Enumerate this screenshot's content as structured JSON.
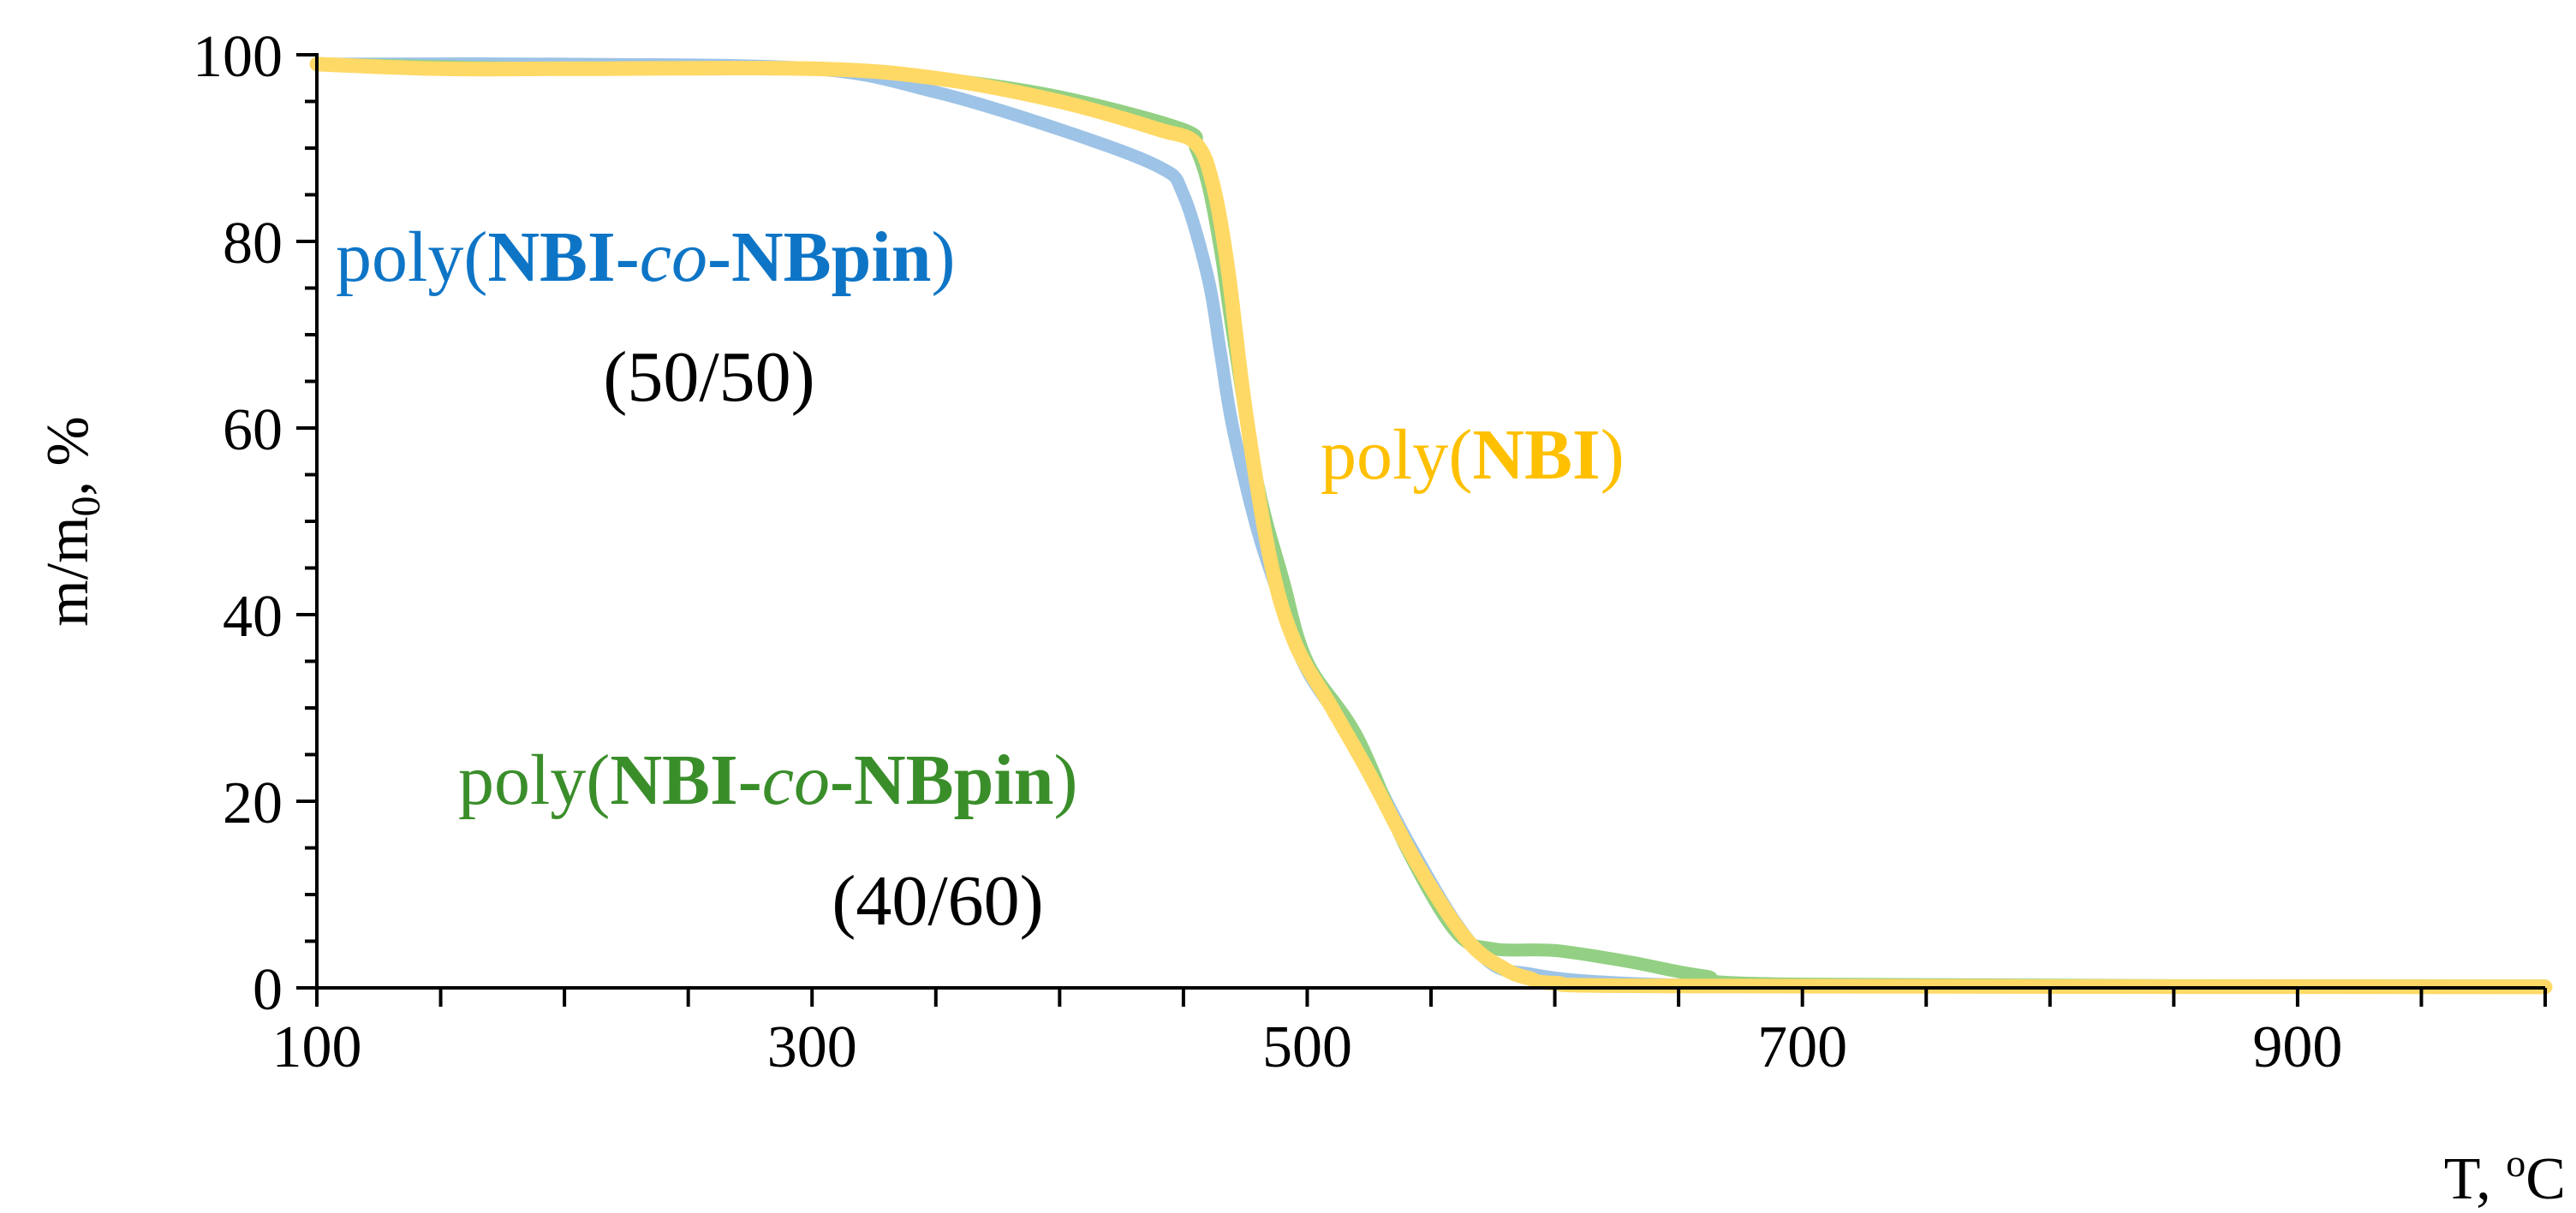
{
  "chart_data": {
    "type": "line",
    "xlabel": "T, °C",
    "xlabel_parts": {
      "pre": "T, ",
      "sup": "o",
      "post": "C"
    },
    "ylabel": "m/m0, %",
    "ylabel_parts": {
      "pre": "m/m",
      "sub": "0",
      "post": ", %"
    },
    "xlim": [
      100,
      1000
    ],
    "ylim": [
      0,
      100
    ],
    "x_ticks": [
      100,
      300,
      500,
      700,
      900
    ],
    "y_ticks": [
      0,
      20,
      40,
      60,
      80,
      100
    ],
    "x_minor_step": 50,
    "y_minor_step": 5,
    "grid": false,
    "series": [
      {
        "name": "poly(NBI-co-NBpin) (50/50)",
        "color": "#9DC3E6",
        "x": [
          100,
          200,
          300,
          350,
          400,
          440,
          450,
          460,
          465,
          470,
          480,
          490,
          500,
          520,
          540,
          560,
          575,
          590,
          610,
          650,
          700,
          1000
        ],
        "y": [
          99,
          99,
          98.5,
          96,
          92,
          88,
          85,
          76,
          68,
          60,
          49,
          41,
          34,
          26,
          16,
          7,
          2.5,
          1.5,
          0.8,
          0.3,
          0.2,
          0.1
        ]
      },
      {
        "name": "poly(NBI-co-NBpin) (40/60)",
        "color": "#93D083",
        "x": [
          100,
          200,
          300,
          350,
          400,
          450,
          455,
          460,
          465,
          470,
          480,
          490,
          500,
          520,
          540,
          560,
          575,
          600,
          630,
          660,
          700,
          1000
        ],
        "y": [
          99,
          98.5,
          98.5,
          97.5,
          95.5,
          92,
          90,
          86,
          79,
          70,
          54,
          44,
          35,
          27,
          15,
          6,
          4.2,
          4,
          2.8,
          1.3,
          0.4,
          0.2
        ]
      },
      {
        "name": "poly(NBI)",
        "color": "#FFD966",
        "x": [
          100,
          150,
          200,
          300,
          350,
          400,
          440,
          455,
          462,
          468,
          475,
          485,
          495,
          510,
          525,
          545,
          565,
          580,
          590,
          600,
          650,
          1000
        ],
        "y": [
          99,
          98.5,
          98.5,
          98.5,
          97.5,
          95,
          92,
          90.5,
          86,
          77,
          62,
          46,
          37,
          30,
          23,
          13,
          5,
          2,
          1,
          0.5,
          0.2,
          0.1
        ]
      }
    ],
    "annotations": [
      {
        "name": "annot-copoly-5050",
        "color": "#0E75C6",
        "line1": {
          "pre": "poly(",
          "bold1": "NBI",
          "dash": "-",
          "ital": "co",
          "dash2": "-",
          "bold2": "NBpin",
          "post": ")"
        },
        "line2": "(50/50)"
      },
      {
        "name": "annot-copoly-4060",
        "color": "#3A8E2A",
        "line1": {
          "pre": "poly(",
          "bold1": "NBI",
          "dash": "-",
          "ital": "co",
          "dash2": "-",
          "bold2": "NBpin",
          "post": ")"
        },
        "line2": "(40/60)"
      },
      {
        "name": "annot-polyNBI",
        "color": "#FFC000",
        "line1": {
          "pre": "poly(",
          "bold1": "NBI",
          "post": ")"
        }
      }
    ]
  }
}
